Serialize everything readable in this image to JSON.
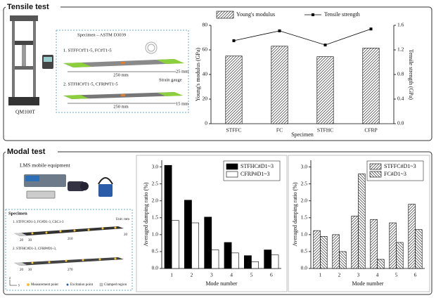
{
  "panels": {
    "tensile": {
      "title": "Tensile test",
      "machine": "QM100T",
      "specimen_title": "Specimen – ASTM D3039",
      "set1": "1. STFFC#T1-5, FC#T1-5",
      "set2": "2. STFHC#T1-5, CFRP#T1-5",
      "length1": "250 mm",
      "width1": "25 mm",
      "gauge": "Strain gauge",
      "length2": "250 mm",
      "width2": "15 mm"
    },
    "modal": {
      "title": "Modal test",
      "equipment": "LMS mobile equipment",
      "specimen_title": "Specimen",
      "unit": "Unit: mm",
      "set1": "1. STFFC#D1-3, FC#D1-3, CSC1-3",
      "set2": "2. STFHC#D1-3, CFRP#D1-3,",
      "dims1": [
        "20",
        "30",
        "210",
        "20"
      ],
      "dims2": [
        "20",
        "30",
        "270"
      ],
      "axes": [
        "z",
        "y"
      ],
      "legend": [
        "Measurement point",
        "Excitation point",
        "Clamped region"
      ]
    }
  },
  "chart_data": [
    {
      "type": "bar",
      "categories": [
        "STFFC",
        "FC",
        "STFHC",
        "CFRP"
      ],
      "series": [
        {
          "name": "Young's modulus",
          "color": "#333333",
          "pattern": "diagonal-up",
          "values": [
            55,
            63,
            54.5,
            61.5
          ]
        },
        {
          "name": "Tensile strength",
          "type": "line",
          "axis": "y2",
          "color": "#000000",
          "values": [
            1.35,
            1.51,
            1.28,
            1.54
          ]
        }
      ],
      "xlabel": "Specimen",
      "ylabel": "Young's modulus (GPa)",
      "y2label": "Tensile strength (GPa)",
      "ylim": [
        0,
        80
      ],
      "yticks": [
        0,
        20,
        40,
        60,
        80
      ],
      "y2lim": [
        0,
        1.6
      ],
      "y2ticks": [
        {
          "value": 0,
          "label": "0.0"
        },
        0.4,
        0.8,
        1.2,
        1.6
      ],
      "legend": "above"
    },
    {
      "type": "bar",
      "categories": [
        "1",
        "2",
        "3",
        "4",
        "5",
        "6"
      ],
      "series": [
        {
          "name": "STFHC#D1~3",
          "color": "#000000",
          "values": [
            3.05,
            2.02,
            1.52,
            0.77,
            0.38,
            0.55
          ]
        },
        {
          "name": "CFRP#D1~3",
          "color": "#ffffff",
          "values": [
            1.42,
            1.35,
            0.55,
            0.46,
            0.2,
            0.4
          ]
        }
      ],
      "xlabel": "Mode number",
      "ylabel": "Averaged damping ratio (%)",
      "ylim": [
        0,
        3.2
      ],
      "yticks": [
        {
          "value": 0,
          "label": "0.0"
        },
        0.5,
        {
          "value": 1,
          "label": "1.0"
        },
        1.5,
        {
          "value": 2,
          "label": "2.0"
        },
        2.5,
        {
          "value": 3,
          "label": "3.0"
        }
      ],
      "legend": "upper right"
    },
    {
      "type": "bar",
      "categories": [
        "1",
        "2",
        "3",
        "4",
        "5",
        "6"
      ],
      "series": [
        {
          "name": "STFFC#D1~3",
          "color": "#333333",
          "pattern": "diagonal-up",
          "values": [
            1.12,
            1.0,
            1.55,
            1.45,
            1.35,
            1.9
          ]
        },
        {
          "name": "FC#D1~3",
          "color": "#333333",
          "pattern": "diagonal-down",
          "values": [
            0.95,
            0.5,
            2.8,
            0.27,
            0.77,
            1.15
          ]
        }
      ],
      "xlabel": "Mode number",
      "ylabel": "Averaged damping ratio (%)",
      "ylim": [
        0,
        3.2
      ],
      "yticks": [
        {
          "value": 0,
          "label": "0.0"
        },
        0.5,
        {
          "value": 1,
          "label": "1.0"
        },
        1.5,
        {
          "value": 2,
          "label": "2.0"
        },
        2.5,
        {
          "value": 3,
          "label": "3.0"
        }
      ],
      "legend": "upper right"
    }
  ]
}
